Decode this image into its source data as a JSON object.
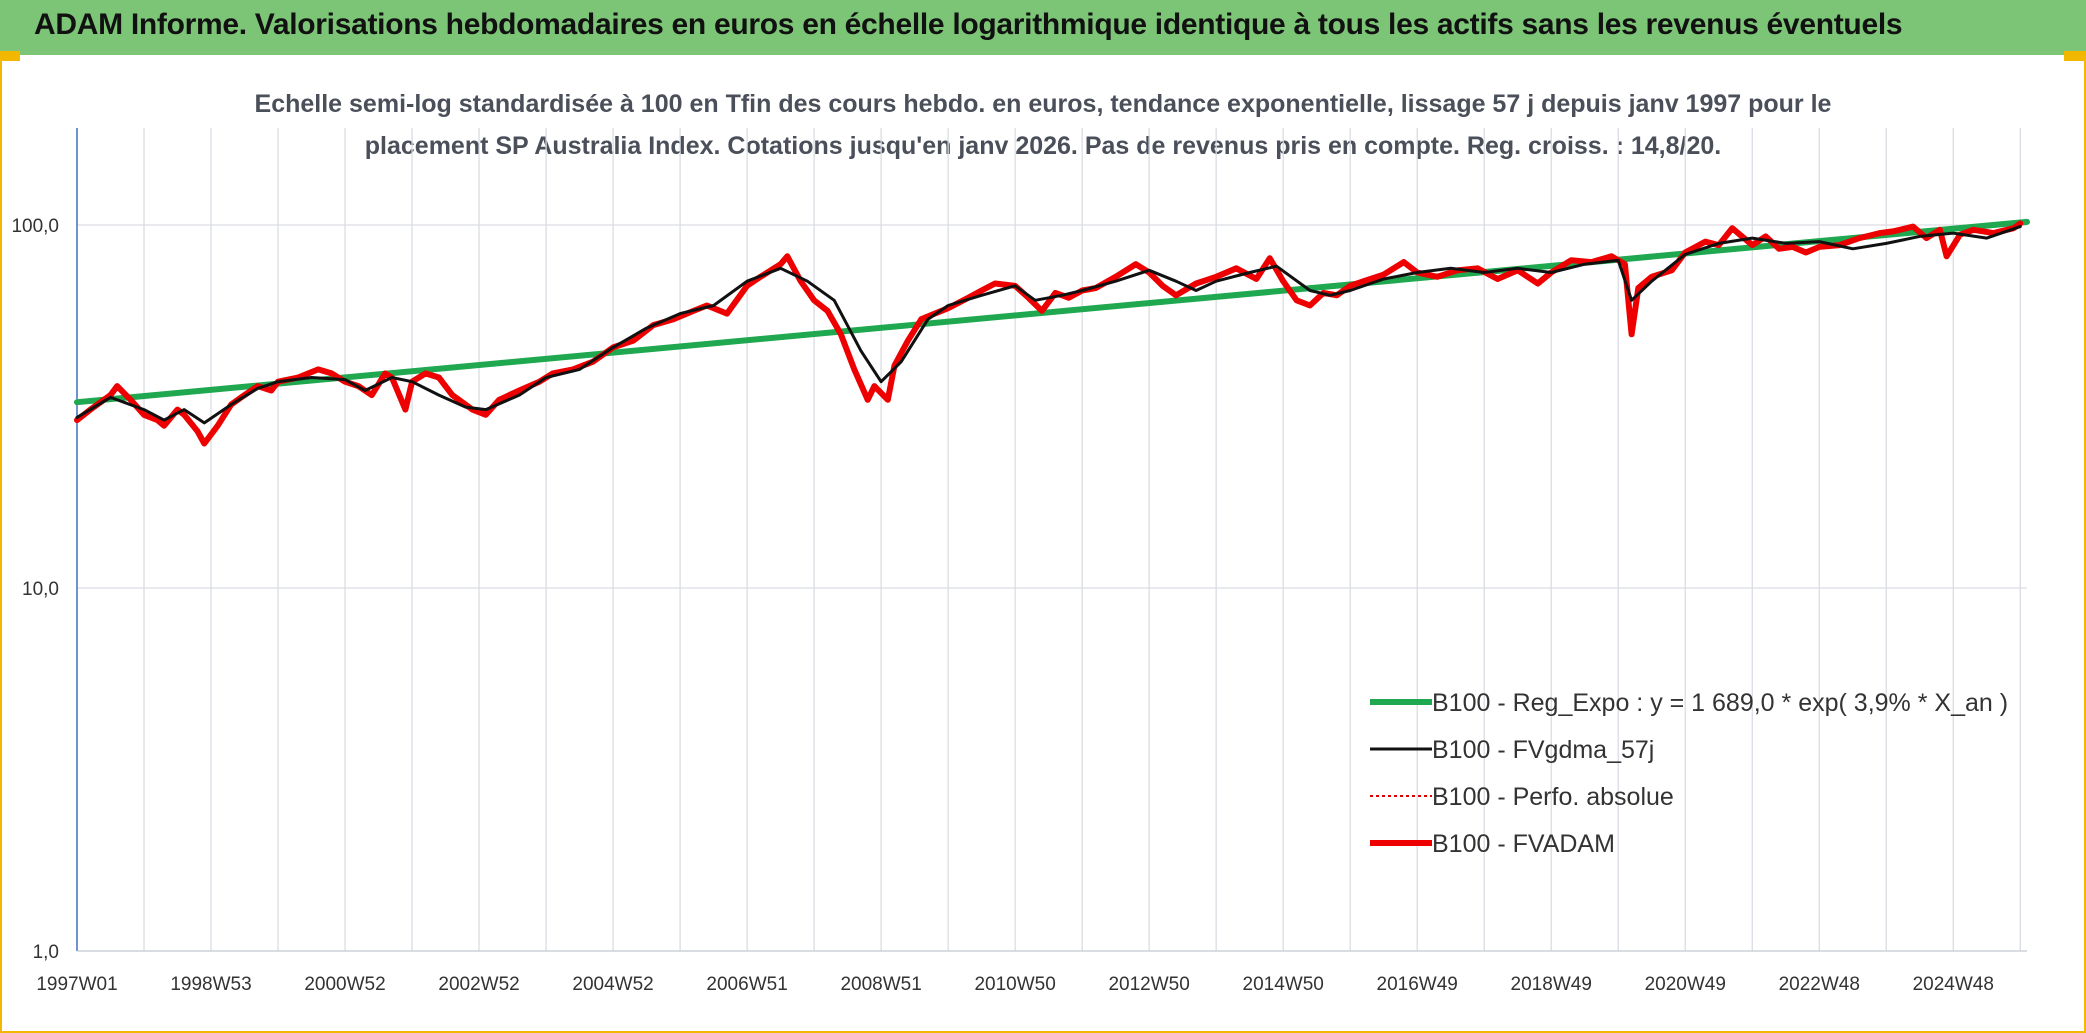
{
  "banner": {
    "title": "ADAM Informe. Valorisations hebdomadaires en euros en échelle logarithmique identique à tous les actifs sans les revenus éventuels",
    "background": "#7cc576",
    "corner_accent": "#f2b800"
  },
  "chart_data": {
    "type": "line",
    "title_line1": "Echelle semi-log standardisée à 100 en Tfin des cours hebdo. en euros, tendance exponentielle, lissage 57 j depuis janv 1997 pour le",
    "title_line2": "placement SP Australia Index. Cotations jusqu'en janv 2026. Pas de revenus pris en compte. Reg. croiss. : 14,8/20.",
    "y_scale": "log",
    "ylim": [
      1,
      185
    ],
    "y_ticks": [
      {
        "value": 100,
        "label": "100,0"
      },
      {
        "value": 10,
        "label": "10,0"
      },
      {
        "value": 1,
        "label": "1,0"
      }
    ],
    "xlim": [
      1997.0,
      2026.1
    ],
    "x_ticks": [
      {
        "value": 1997.0,
        "label": "1997W01"
      },
      {
        "value": 1999.0,
        "label": "1998W53"
      },
      {
        "value": 2001.0,
        "label": "2000W52"
      },
      {
        "value": 2003.0,
        "label": "2002W52"
      },
      {
        "value": 2005.0,
        "label": "2004W52"
      },
      {
        "value": 2007.0,
        "label": "2006W51"
      },
      {
        "value": 2009.0,
        "label": "2008W51"
      },
      {
        "value": 2011.0,
        "label": "2010W50"
      },
      {
        "value": 2013.0,
        "label": "2012W50"
      },
      {
        "value": 2015.0,
        "label": "2014W50"
      },
      {
        "value": 2017.0,
        "label": "2016W49"
      },
      {
        "value": 2019.0,
        "label": "2018W49"
      },
      {
        "value": 2021.0,
        "label": "2020W49"
      },
      {
        "value": 2023.0,
        "label": "2022W48"
      },
      {
        "value": 2025.0,
        "label": "2024W48"
      }
    ],
    "grid": "vertical and horizontal",
    "legend_position": "bottom-right",
    "series": [
      {
        "name": "B100 - Reg_Expo : y = 1 689,0 * exp( 3,9% *  X_an )",
        "color": "#1fa84f",
        "style": "solid-thick",
        "x": [
          1997.0,
          2026.1
        ],
        "y": [
          32.5,
          102.0
        ]
      },
      {
        "name": "B100 - FVgdma_57j",
        "color": "#111111",
        "style": "solid-thin",
        "x": [
          1997.0,
          1997.5,
          1998.0,
          1998.3,
          1998.6,
          1998.9,
          1999.3,
          1999.7,
          2000.0,
          2000.5,
          2001.0,
          2001.3,
          2001.7,
          2002.0,
          2002.4,
          2002.8,
          2003.1,
          2003.6,
          2004.0,
          2004.5,
          2005.0,
          2005.5,
          2006.0,
          2006.5,
          2007.0,
          2007.5,
          2007.9,
          2008.3,
          2008.7,
          2009.0,
          2009.3,
          2009.7,
          2010.0,
          2010.5,
          2011.0,
          2011.3,
          2011.7,
          2012.0,
          2012.5,
          2013.0,
          2013.4,
          2013.7,
          2014.0,
          2014.5,
          2014.9,
          2015.4,
          2015.7,
          2016.0,
          2016.5,
          2017.0,
          2017.5,
          2018.0,
          2018.5,
          2019.0,
          2019.5,
          2020.0,
          2020.2,
          2020.5,
          2021.0,
          2021.5,
          2022.0,
          2022.5,
          2023.0,
          2023.5,
          2024.0,
          2024.5,
          2025.0,
          2025.5,
          2026.0
        ],
        "y": [
          29.5,
          33.5,
          31.0,
          29.0,
          31.0,
          28.5,
          32.0,
          35.5,
          37.0,
          38.0,
          37.5,
          35.0,
          38.0,
          37.0,
          34.0,
          31.5,
          31.0,
          34.0,
          38.0,
          40.0,
          46.0,
          52.0,
          57.0,
          60.0,
          70.0,
          76.0,
          70.0,
          62.0,
          45.0,
          37.0,
          42.0,
          55.0,
          60.0,
          64.0,
          68.0,
          62.0,
          64.0,
          66.0,
          70.0,
          75.0,
          70.0,
          66.0,
          70.0,
          74.0,
          77.0,
          66.0,
          64.0,
          66.0,
          71.0,
          74.0,
          76.0,
          74.0,
          76.0,
          74.0,
          78.0,
          80.0,
          62.0,
          70.0,
          83.0,
          89.0,
          92.0,
          89.0,
          90.0,
          86.0,
          89.0,
          93.0,
          95.0,
          92.0,
          99.0
        ]
      },
      {
        "name": "B100 - Perfo. absolue",
        "color": "#e00000",
        "style": "dotted"
      },
      {
        "name": "B100 - FVADAM",
        "color": "#ee0000",
        "style": "solid-thick",
        "x": [
          1997.0,
          1997.2,
          1997.5,
          1997.6,
          1997.8,
          1998.0,
          1998.2,
          1998.3,
          1998.5,
          1998.6,
          1998.8,
          1998.9,
          1999.1,
          1999.3,
          1999.5,
          1999.7,
          1999.9,
          2000.0,
          2000.3,
          2000.6,
          2000.8,
          2001.0,
          2001.2,
          2001.4,
          2001.6,
          2001.7,
          2001.9,
          2002.0,
          2002.2,
          2002.4,
          2002.6,
          2002.9,
          2003.1,
          2003.3,
          2003.6,
          2003.9,
          2004.1,
          2004.4,
          2004.7,
          2005.0,
          2005.3,
          2005.6,
          2005.9,
          2006.2,
          2006.4,
          2006.7,
          2007.0,
          2007.2,
          2007.5,
          2007.6,
          2007.8,
          2008.0,
          2008.2,
          2008.4,
          2008.6,
          2008.8,
          2008.9,
          2009.1,
          2009.2,
          2009.4,
          2009.6,
          2009.8,
          2010.0,
          2010.3,
          2010.5,
          2010.7,
          2011.0,
          2011.2,
          2011.4,
          2011.6,
          2011.8,
          2012.0,
          2012.2,
          2012.5,
          2012.8,
          2013.0,
          2013.2,
          2013.4,
          2013.7,
          2014.0,
          2014.3,
          2014.6,
          2014.8,
          2015.0,
          2015.2,
          2015.4,
          2015.6,
          2015.8,
          2016.0,
          2016.2,
          2016.5,
          2016.8,
          2017.0,
          2017.3,
          2017.6,
          2017.9,
          2018.2,
          2018.5,
          2018.8,
          2019.0,
          2019.3,
          2019.6,
          2019.9,
          2020.1,
          2020.2,
          2020.3,
          2020.5,
          2020.8,
          2021.0,
          2021.3,
          2021.5,
          2021.7,
          2022.0,
          2022.2,
          2022.4,
          2022.6,
          2022.8,
          2023.0,
          2023.3,
          2023.6,
          2023.9,
          2024.1,
          2024.4,
          2024.6,
          2024.8,
          2024.9,
          2025.1,
          2025.3,
          2025.6,
          2025.9,
          2026.0
        ],
        "y": [
          29.0,
          31.0,
          34.0,
          36.0,
          33.0,
          30.0,
          29.0,
          28.0,
          31.0,
          30.0,
          27.0,
          25.0,
          28.0,
          32.0,
          34.0,
          36.0,
          35.0,
          37.0,
          38.0,
          40.0,
          39.0,
          37.0,
          36.0,
          34.0,
          39.0,
          38.0,
          31.0,
          37.0,
          39.0,
          38.0,
          34.0,
          31.0,
          30.0,
          33.0,
          35.0,
          37.0,
          39.0,
          40.0,
          42.0,
          46.0,
          48.0,
          53.0,
          55.0,
          58.0,
          60.0,
          57.0,
          68.0,
          72.0,
          78.0,
          82.0,
          70.0,
          62.0,
          58.0,
          50.0,
          40.0,
          33.0,
          36.0,
          33.0,
          41.0,
          48.0,
          55.0,
          57.0,
          59.0,
          63.0,
          66.0,
          69.0,
          68.0,
          63.0,
          58.0,
          65.0,
          63.0,
          66.0,
          67.0,
          72.0,
          78.0,
          74.0,
          68.0,
          64.0,
          69.0,
          72.0,
          76.0,
          71.0,
          81.0,
          70.0,
          62.0,
          60.0,
          65.0,
          64.0,
          68.0,
          70.0,
          73.0,
          79.0,
          74.0,
          72.0,
          75.0,
          76.0,
          71.0,
          75.0,
          69.0,
          74.0,
          80.0,
          79.0,
          82.0,
          78.0,
          50.0,
          67.0,
          72.0,
          75.0,
          84.0,
          90.0,
          88.0,
          98.0,
          88.0,
          93.0,
          86.0,
          87.0,
          84.0,
          87.0,
          88.0,
          92.0,
          95.0,
          96.0,
          99.0,
          92.0,
          97.0,
          82.0,
          94.0,
          97.0,
          95.0,
          98.0,
          101.0
        ]
      }
    ]
  }
}
